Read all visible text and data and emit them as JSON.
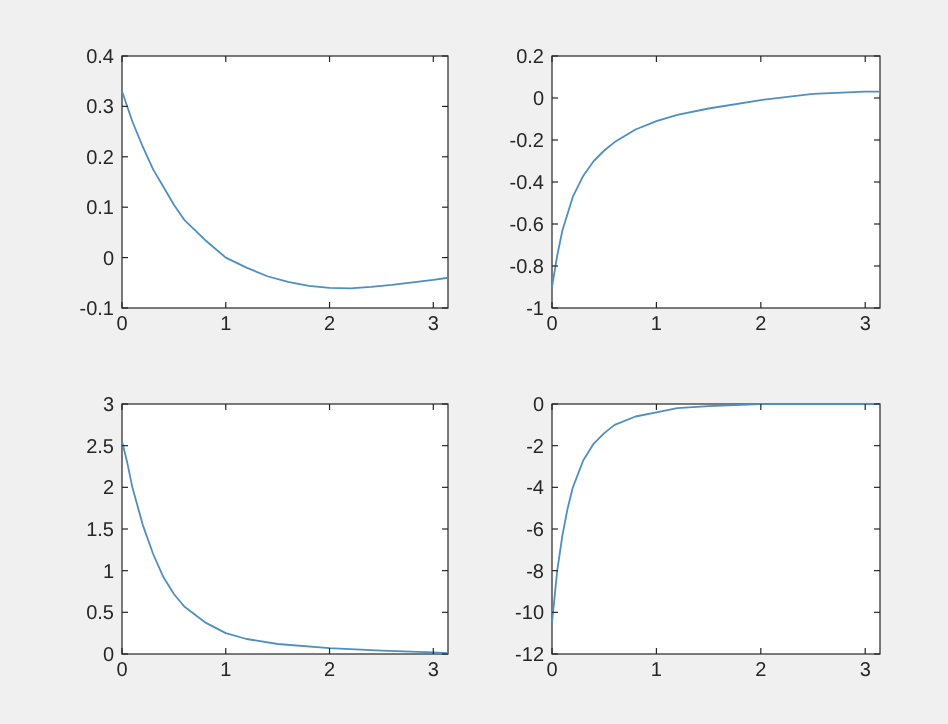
{
  "chart_data": [
    {
      "type": "line",
      "xlim": [
        0,
        3.1416
      ],
      "ylim": [
        -0.1,
        0.4
      ],
      "xticks": [
        0,
        1,
        2,
        3
      ],
      "yticks": [
        -0.1,
        0,
        0.1,
        0.2,
        0.3,
        0.4
      ],
      "x": [
        0,
        0.1,
        0.2,
        0.3,
        0.4,
        0.5,
        0.6,
        0.8,
        1.0,
        1.2,
        1.4,
        1.6,
        1.8,
        2.0,
        2.2,
        2.4,
        2.6,
        2.8,
        3.0,
        3.1416
      ],
      "series": [
        {
          "color": "#4f8fc0",
          "values": [
            0.33,
            0.27,
            0.22,
            0.175,
            0.14,
            0.105,
            0.075,
            0.035,
            0.0,
            -0.02,
            -0.037,
            -0.048,
            -0.056,
            -0.06,
            -0.061,
            -0.058,
            -0.054,
            -0.049,
            -0.044,
            -0.04
          ]
        }
      ]
    },
    {
      "type": "line",
      "xlim": [
        0,
        3.1416
      ],
      "ylim": [
        -1,
        0.2
      ],
      "xticks": [
        0,
        1,
        2,
        3
      ],
      "yticks": [
        -1,
        -0.8,
        -0.6,
        -0.4,
        -0.2,
        0,
        0.2
      ],
      "x": [
        0,
        0.05,
        0.1,
        0.2,
        0.3,
        0.4,
        0.5,
        0.6,
        0.8,
        1.0,
        1.2,
        1.5,
        2.0,
        2.5,
        3.0,
        3.1416
      ],
      "series": [
        {
          "color": "#4f8fc0",
          "values": [
            -0.9,
            -0.75,
            -0.63,
            -0.47,
            -0.37,
            -0.3,
            -0.25,
            -0.21,
            -0.15,
            -0.11,
            -0.08,
            -0.05,
            -0.01,
            0.02,
            0.03,
            0.03
          ]
        }
      ]
    },
    {
      "type": "line",
      "xlim": [
        0,
        3.1416
      ],
      "ylim": [
        0,
        3
      ],
      "xticks": [
        0,
        1,
        2,
        3
      ],
      "yticks": [
        0,
        0.5,
        1,
        1.5,
        2,
        2.5,
        3
      ],
      "x": [
        0,
        0.05,
        0.1,
        0.2,
        0.3,
        0.4,
        0.5,
        0.6,
        0.8,
        1.0,
        1.2,
        1.5,
        2.0,
        2.5,
        3.0,
        3.1416
      ],
      "series": [
        {
          "color": "#4f8fc0",
          "values": [
            2.55,
            2.3,
            2.0,
            1.55,
            1.2,
            0.92,
            0.72,
            0.57,
            0.38,
            0.25,
            0.18,
            0.12,
            0.07,
            0.04,
            0.02,
            0.01
          ]
        }
      ]
    },
    {
      "type": "line",
      "xlim": [
        0,
        3.1416
      ],
      "ylim": [
        -12,
        0
      ],
      "xticks": [
        0,
        1,
        2,
        3
      ],
      "yticks": [
        -12,
        -10,
        -8,
        -6,
        -4,
        -2,
        0
      ],
      "x": [
        0,
        0.02,
        0.05,
        0.1,
        0.15,
        0.2,
        0.3,
        0.4,
        0.5,
        0.6,
        0.8,
        1.0,
        1.2,
        1.5,
        2.0,
        2.5,
        3.1416
      ],
      "series": [
        {
          "color": "#4f8fc0",
          "values": [
            -10.5,
            -9.5,
            -8,
            -6.3,
            -5,
            -4,
            -2.7,
            -1.9,
            -1.4,
            -1.0,
            -0.6,
            -0.4,
            -0.2,
            -0.1,
            0,
            0,
            0
          ]
        }
      ]
    }
  ]
}
